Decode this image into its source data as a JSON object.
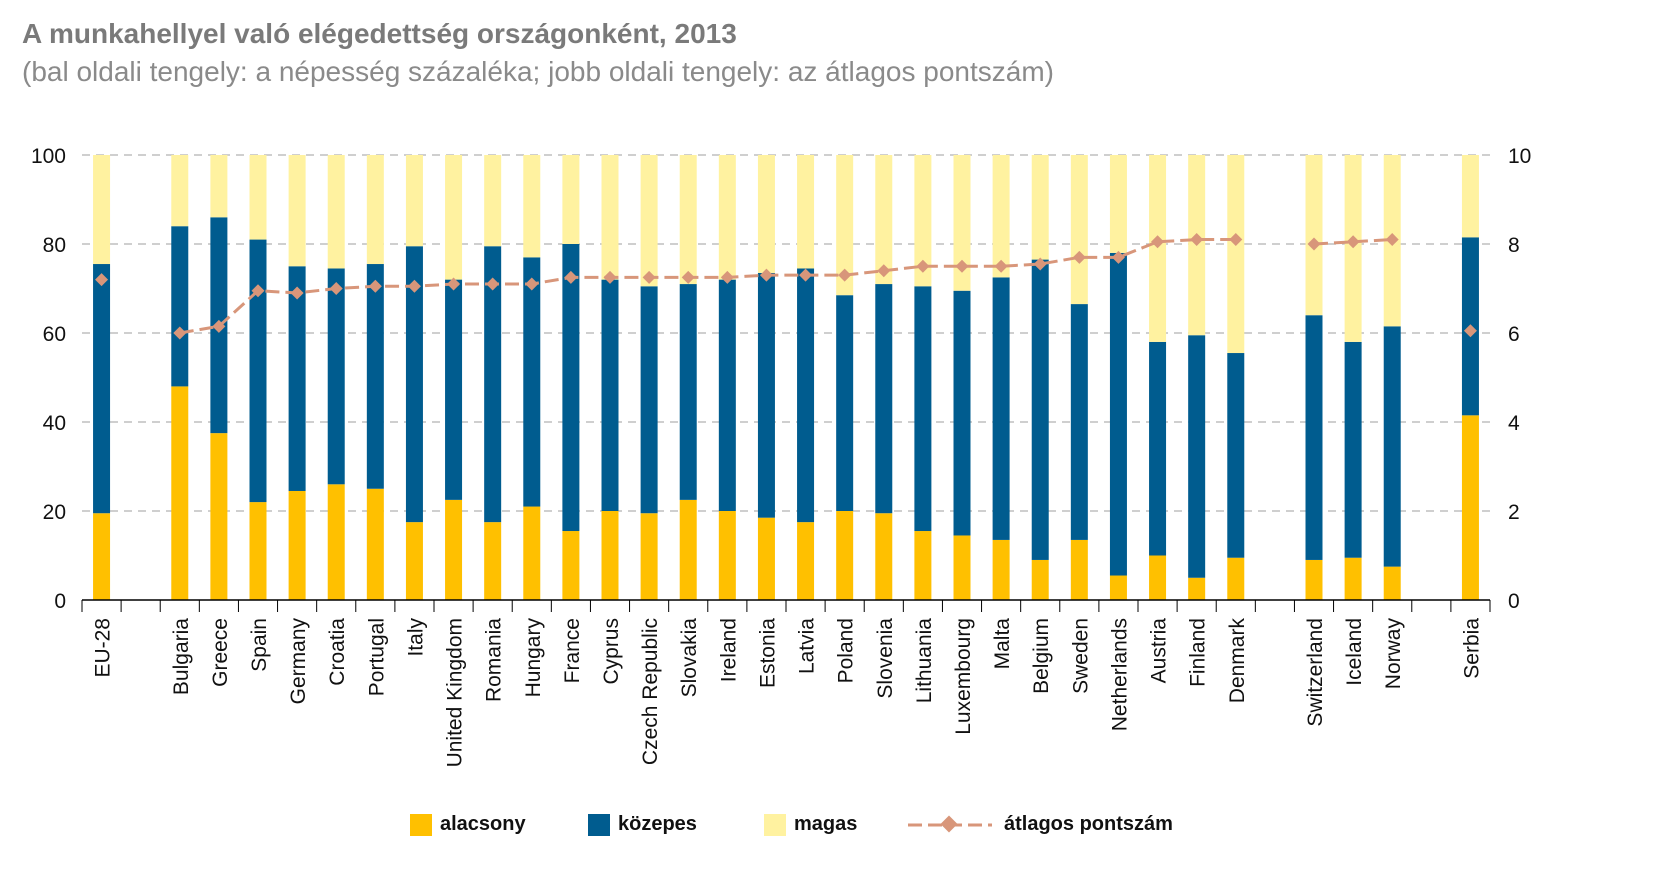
{
  "header": {
    "title": "A munkahellyel való elégedettség országonként, 2013",
    "subtitle": "(bal oldali tengely: a népesség százaléka; jobb oldali tengely: az átlagos pontszám)"
  },
  "colors": {
    "alacsony": "#FFC000",
    "kozepes": "#005C8F",
    "magas": "#FFF2A0",
    "atlagos": "#D8967A",
    "grid": "#BFBFBF"
  },
  "legend": {
    "alacsony": "alacsony",
    "kozepes": "közepes",
    "magas": "magas",
    "atlagos": "átlagos pontszám"
  },
  "chart_data": {
    "type": "bar",
    "stacked": true,
    "categories": [
      "EU-28",
      "",
      "Bulgaria",
      "Greece",
      "Spain",
      "Germany",
      "Croatia",
      "Portugal",
      "Italy",
      "United Kingdom",
      "Romania",
      "Hungary",
      "France",
      "Cyprus",
      "Czech Republic",
      "Slovakia",
      "Ireland",
      "Estonia",
      "Latvia",
      "Poland",
      "Slovenia",
      "Lithuania",
      "Luxembourg",
      "Malta",
      "Belgium",
      "Sweden",
      "Netherlands",
      "Austria",
      "Finland",
      "Denmark",
      "",
      "Switzerland",
      "Iceland",
      "Norway",
      "",
      "Serbia"
    ],
    "series": [
      {
        "name": "alacsony",
        "values": [
          19.5,
          null,
          48,
          37.5,
          22,
          24.5,
          26,
          25,
          17.5,
          22.5,
          17.5,
          21,
          15.5,
          20,
          19.5,
          22.5,
          20,
          18.5,
          17.5,
          20,
          19.5,
          15.5,
          14.5,
          13.5,
          9,
          13.5,
          5.5,
          10,
          5,
          9.5,
          null,
          9,
          9.5,
          7.5,
          null,
          41.5
        ]
      },
      {
        "name": "közepes",
        "values": [
          56,
          null,
          36,
          48.5,
          59,
          50.5,
          48.5,
          50.5,
          62,
          49.5,
          62,
          56,
          64.5,
          52,
          51,
          48.5,
          52,
          55,
          57,
          48.5,
          51.5,
          55,
          55,
          59,
          67.5,
          53,
          72.5,
          48,
          54.5,
          46,
          null,
          55,
          48.5,
          54,
          null,
          40
        ]
      },
      {
        "name": "magas",
        "values": [
          24.5,
          null,
          16,
          14,
          19,
          25,
          25.5,
          24.5,
          20.5,
          28,
          20.5,
          23,
          20,
          28,
          29.5,
          29,
          28,
          26.5,
          25.5,
          31.5,
          29,
          29.5,
          30.5,
          27.5,
          23.5,
          33.5,
          22,
          42,
          40.5,
          44.5,
          null,
          36,
          42,
          38.5,
          null,
          18.5
        ]
      },
      {
        "name": "átlagos pontszám",
        "axis": "right",
        "type": "line",
        "values": [
          7.2,
          null,
          6.0,
          6.15,
          6.95,
          6.9,
          7.0,
          7.05,
          7.05,
          7.1,
          7.1,
          7.1,
          7.25,
          7.25,
          7.25,
          7.25,
          7.25,
          7.3,
          7.3,
          7.3,
          7.4,
          7.5,
          7.5,
          7.5,
          7.55,
          7.7,
          7.7,
          8.05,
          8.1,
          8.1,
          null,
          8.0,
          8.05,
          8.1,
          null,
          6.05
        ]
      }
    ],
    "yLeft": {
      "ylim": [
        0,
        100
      ],
      "ticks": [
        "0",
        "20",
        "40",
        "60",
        "80",
        "100"
      ]
    },
    "yRight": {
      "ylim": [
        0,
        10
      ],
      "ticks": [
        "0",
        "2",
        "4",
        "6",
        "8",
        "10"
      ]
    },
    "grid": true,
    "legend_position": "bottom"
  }
}
